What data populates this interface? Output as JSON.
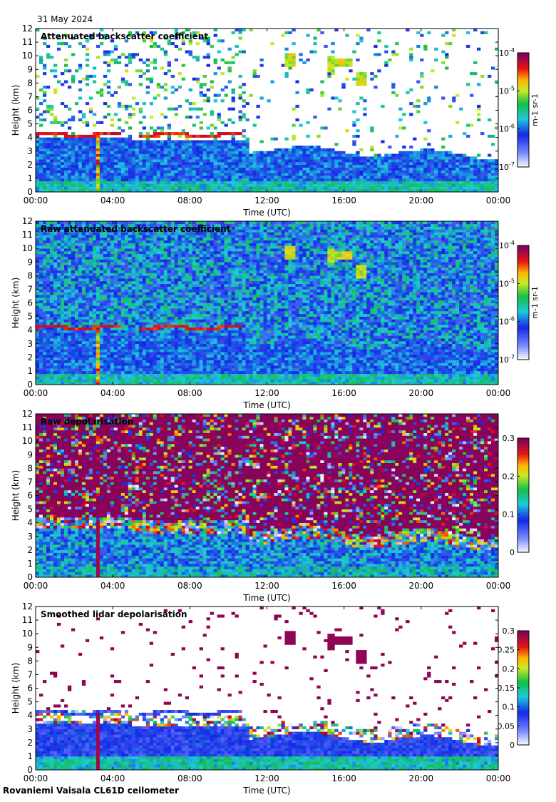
{
  "header": {
    "date": "31 May 2024"
  },
  "footer": {
    "site": "Rovaniemi Vaisala CL61D ceilometer"
  },
  "chart_data": [
    {
      "type": "heatmap",
      "title": "Attenuated backscatter coefficient",
      "xlabel": "Time (UTC)",
      "ylabel": "Height (km)",
      "x_tick_labels": [
        "00:00",
        "04:00",
        "08:00",
        "12:00",
        "16:00",
        "20:00",
        "00:00"
      ],
      "x_ticks_hours": [
        0,
        4,
        8,
        12,
        16,
        20,
        24
      ],
      "xlim": [
        0,
        24
      ],
      "ylim": [
        0,
        12
      ],
      "y_tick_labels": [
        "0",
        "1",
        "2",
        "3",
        "4",
        "5",
        "6",
        "7",
        "8",
        "9",
        "10",
        "11",
        "12"
      ],
      "colorbar": {
        "scale": "log",
        "range": [
          1e-07,
          0.0001
        ],
        "label": "m-1 sr-1",
        "tick_labels": [
          {
            "base": "10",
            "exp": "-4"
          },
          {
            "base": "10",
            "exp": "-5"
          },
          {
            "base": "10",
            "exp": "-6"
          },
          {
            "base": "10",
            "exp": "-7"
          }
        ]
      },
      "features": {
        "boundary_layer_top_km": 3.5,
        "cloud_layer": {
          "time_range_h": [
            0,
            10.8
          ],
          "height_km": 4.2
        },
        "precipitation_shaft": {
          "time_h": 3.2,
          "height_range_km": [
            0,
            4.2
          ]
        },
        "high_cloud_patches": [
          {
            "time_h": 13.2,
            "height_km": 9.7
          },
          {
            "time_h": 15.3,
            "height_km": 9.3
          },
          {
            "time_h": 16.0,
            "height_km": 9.4
          },
          {
            "time_h": 16.9,
            "height_km": 8.3
          }
        ]
      }
    },
    {
      "type": "heatmap",
      "title": "Raw attenuated backscatter coefficient",
      "xlabel": "Time (UTC)",
      "ylabel": "Height (km)",
      "x_tick_labels": [
        "00:00",
        "04:00",
        "08:00",
        "12:00",
        "16:00",
        "20:00",
        "00:00"
      ],
      "x_ticks_hours": [
        0,
        4,
        8,
        12,
        16,
        20,
        24
      ],
      "xlim": [
        0,
        24
      ],
      "ylim": [
        0,
        12
      ],
      "y_tick_labels": [
        "0",
        "1",
        "2",
        "3",
        "4",
        "5",
        "6",
        "7",
        "8",
        "9",
        "10",
        "11",
        "12"
      ],
      "colorbar": {
        "scale": "log",
        "range": [
          1e-07,
          0.0001
        ],
        "label": "m-1 sr-1",
        "tick_labels": [
          {
            "base": "10",
            "exp": "-4"
          },
          {
            "base": "10",
            "exp": "-5"
          },
          {
            "base": "10",
            "exp": "-6"
          },
          {
            "base": "10",
            "exp": "-7"
          }
        ]
      }
    },
    {
      "type": "heatmap",
      "title": "Raw depolarisation",
      "xlabel": "Time (UTC)",
      "ylabel": "Height (km)",
      "x_tick_labels": [
        "00:00",
        "04:00",
        "08:00",
        "12:00",
        "16:00",
        "20:00",
        "00:00"
      ],
      "x_ticks_hours": [
        0,
        4,
        8,
        12,
        16,
        20,
        24
      ],
      "xlim": [
        0,
        24
      ],
      "ylim": [
        0,
        12
      ],
      "y_tick_labels": [
        "0",
        "1",
        "2",
        "3",
        "4",
        "5",
        "6",
        "7",
        "8",
        "9",
        "10",
        "11",
        "12"
      ],
      "colorbar": {
        "scale": "linear",
        "range": [
          0,
          0.3
        ],
        "label": "",
        "tick_labels": [
          "0.3",
          "0.2",
          "0.1",
          "0"
        ]
      }
    },
    {
      "type": "heatmap",
      "title": "Smoothed lidar depolarisation",
      "xlabel": "Time (UTC)",
      "ylabel": "Height (km)",
      "x_tick_labels": [
        "00:00",
        "04:00",
        "08:00",
        "12:00",
        "16:00",
        "20:00",
        "00:00"
      ],
      "x_ticks_hours": [
        0,
        4,
        8,
        12,
        16,
        20,
        24
      ],
      "xlim": [
        0,
        24
      ],
      "ylim": [
        0,
        12
      ],
      "y_tick_labels": [
        "0",
        "1",
        "2",
        "3",
        "4",
        "5",
        "6",
        "7",
        "8",
        "9",
        "10",
        "11",
        "12"
      ],
      "colorbar": {
        "scale": "linear",
        "range": [
          0,
          0.3
        ],
        "label": "",
        "tick_labels": [
          "0.3",
          "0.25",
          "0.2",
          "0.15",
          "0.1",
          "0.05",
          "0"
        ]
      }
    }
  ]
}
